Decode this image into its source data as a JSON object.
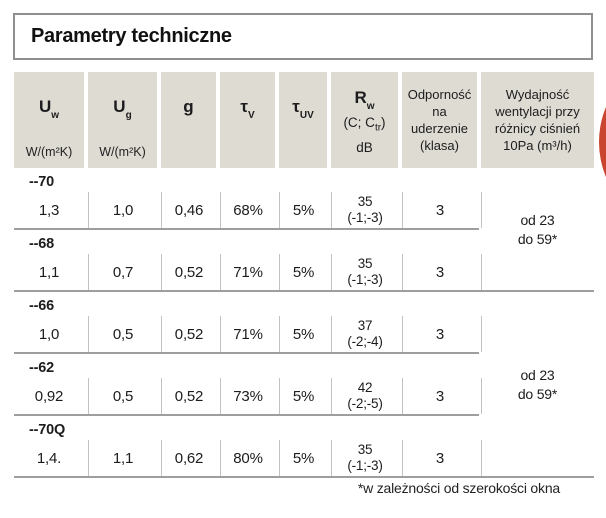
{
  "page": {
    "title": "Parametry techniczne",
    "footnote": "*w zależności od szerokości okna"
  },
  "table": {
    "header": {
      "uw": {
        "symbol": "U",
        "sub": "w",
        "unit": "W/(m²K)"
      },
      "ug": {
        "symbol": "U",
        "sub": "g",
        "unit": "W/(m²K)"
      },
      "g": {
        "symbol": "g"
      },
      "tv": {
        "symbol": "τ",
        "sub": "V"
      },
      "tuv": {
        "symbol": "τ",
        "sub": "UV"
      },
      "rw": {
        "symbol": "R",
        "sub": "w",
        "line2_pre": "(C; C",
        "line2_sub": "tr",
        "line2_post": ")",
        "line3": "dB"
      },
      "impact": {
        "lines": [
          "Odporność",
          "na",
          "uderzenie",
          "(klasa)"
        ]
      },
      "vent": {
        "lines": [
          "Wydajność",
          "wentylacji przy",
          "różnicy ciśnień",
          "10Pa (m³/h)"
        ]
      }
    },
    "rows": [
      {
        "label": "--70",
        "uw": "1,3",
        "ug": "1,0",
        "g": "0,46",
        "tv": "68%",
        "tuv": "5%",
        "rw": "35",
        "rw_c": "(-1;-3)",
        "impact": "3"
      },
      {
        "label": "--68",
        "uw": "1,1",
        "ug": "0,7",
        "g": "0,52",
        "tv": "71%",
        "tuv": "5%",
        "rw": "35",
        "rw_c": "(-1;-3)",
        "impact": "3"
      },
      {
        "label": "--66",
        "uw": "1,0",
        "ug": "0,5",
        "g": "0,52",
        "tv": "71%",
        "tuv": "5%",
        "rw": "37",
        "rw_c": "(-2;-4)",
        "impact": "3"
      },
      {
        "label": "--62",
        "uw": "0,92",
        "ug": "0,5",
        "g": "0,52",
        "tv": "73%",
        "tuv": "5%",
        "rw": "42",
        "rw_c": "(-2;-5)",
        "impact": "3"
      },
      {
        "label": "--70Q",
        "uw": "1,4.",
        "ug": "1,1",
        "g": "0,62",
        "tv": "80%",
        "tuv": "5%",
        "rw": "35",
        "rw_c": "(-1;-3)",
        "impact": "3"
      }
    ],
    "vent_values": [
      {
        "line1": "od 23",
        "line2": "do 59*"
      },
      {
        "line1": "od 23",
        "line2": "do 59*"
      }
    ]
  },
  "colors": {
    "header_bg": "#dedbd3",
    "separator_dark": "#9e9e9e",
    "separator_light": "#c2c2c2",
    "title_border": "#8f8f8f",
    "accent_red": "#c9452f"
  }
}
